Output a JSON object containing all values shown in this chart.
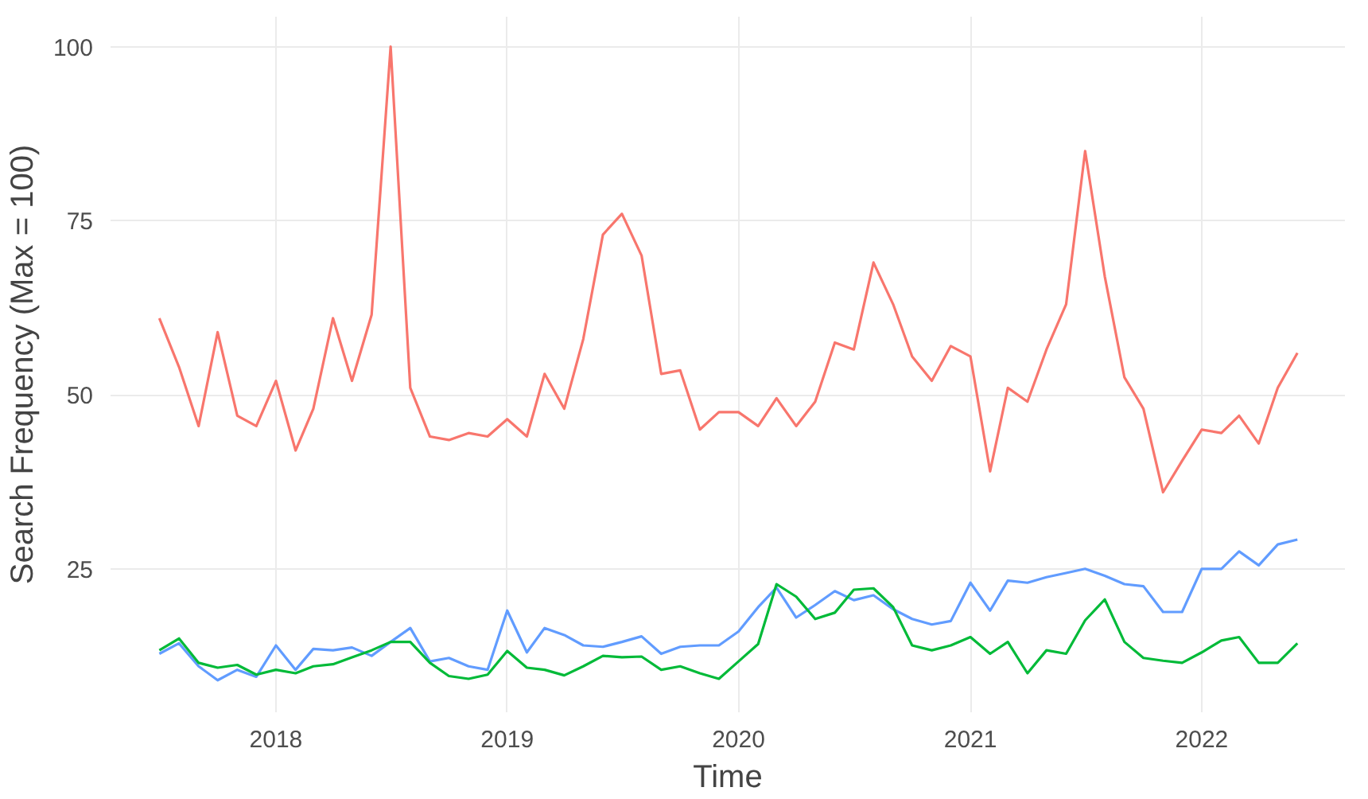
{
  "chart_data": {
    "type": "line",
    "xlabel": "Time",
    "ylabel": "Search Frequency (Max = 100)",
    "x": [
      "2017-07",
      "2017-08",
      "2017-09",
      "2017-10",
      "2017-11",
      "2017-12",
      "2018-01",
      "2018-02",
      "2018-03",
      "2018-04",
      "2018-05",
      "2018-06",
      "2018-07",
      "2018-08",
      "2018-09",
      "2018-10",
      "2018-11",
      "2018-12",
      "2019-01",
      "2019-02",
      "2019-03",
      "2019-04",
      "2019-05",
      "2019-06",
      "2019-07",
      "2019-08",
      "2019-09",
      "2019-10",
      "2019-11",
      "2019-12",
      "2020-01",
      "2020-02",
      "2020-03",
      "2020-04",
      "2020-05",
      "2020-06",
      "2020-07",
      "2020-08",
      "2020-09",
      "2020-10",
      "2020-11",
      "2020-12",
      "2021-01",
      "2021-02",
      "2021-03",
      "2021-04",
      "2021-05",
      "2021-06",
      "2021-07",
      "2021-08",
      "2021-09",
      "2021-10",
      "2021-11",
      "2021-12",
      "2022-01",
      "2022-02",
      "2022-03",
      "2022-04",
      "2022-05",
      "2022-06"
    ],
    "series": [
      {
        "color": "#f8766d",
        "values": [
          61,
          54,
          45.5,
          59,
          47,
          45.5,
          52,
          42,
          48,
          61,
          52,
          61.5,
          100,
          51,
          44,
          43.5,
          44.5,
          44,
          46.5,
          44,
          53,
          48,
          58,
          73,
          76,
          70,
          53,
          53.5,
          45,
          47.5,
          47.5,
          45.5,
          49.5,
          45.5,
          49,
          57.5,
          56.5,
          69,
          63,
          55.5,
          52,
          57,
          55.5,
          39,
          51,
          49,
          56.5,
          63,
          85,
          67,
          52.5,
          48,
          36,
          40.5,
          45,
          44.5,
          47,
          43,
          51,
          56
        ]
      },
      {
        "color": "#619cff",
        "values": [
          12.8,
          14.3,
          11,
          9,
          10.5,
          9.5,
          14,
          10.5,
          13.5,
          13.3,
          13.7,
          12.5,
          14.5,
          16.5,
          11.7,
          12.2,
          11,
          10.5,
          19,
          13,
          16.5,
          15.5,
          14,
          13.8,
          14.5,
          15.3,
          12.8,
          13.8,
          14,
          14,
          16,
          19.5,
          22.3,
          18,
          19.8,
          21.8,
          20.5,
          21.2,
          19.2,
          17.8,
          17,
          17.5,
          23,
          19,
          23.3,
          23,
          23.8,
          24.4,
          25,
          24,
          22.8,
          22.5,
          18.8,
          18.8,
          25,
          25,
          27.5,
          25.5,
          28.5,
          29.2
        ]
      },
      {
        "color": "#00ba38",
        "values": [
          13.3,
          15,
          11.5,
          10.8,
          11.2,
          9.8,
          10.5,
          10,
          11,
          11.3,
          12.3,
          13.3,
          14.5,
          14.5,
          11.5,
          9.6,
          9.2,
          9.8,
          13.2,
          10.8,
          10.5,
          9.7,
          11,
          12.5,
          12.3,
          12.4,
          10.5,
          11,
          10,
          9.2,
          11.7,
          14.2,
          22.8,
          21,
          17.8,
          18.7,
          22,
          22.2,
          19.5,
          14,
          13.3,
          14,
          15.2,
          12.8,
          14.5,
          10,
          13.3,
          12.8,
          17.6,
          20.6,
          14.5,
          12.2,
          11.8,
          11.5,
          13,
          14.7,
          15.2,
          11.5,
          11.5,
          14.3
        ]
      }
    ],
    "xlim": [
      "2017-04-15",
      "2022-08-15"
    ],
    "xticks": [
      {
        "value": "2018-01-01",
        "label": "2018"
      },
      {
        "value": "2019-01-01",
        "label": "2019"
      },
      {
        "value": "2020-01-01",
        "label": "2020"
      },
      {
        "value": "2021-01-01",
        "label": "2021"
      },
      {
        "value": "2022-01-01",
        "label": "2022"
      }
    ],
    "ylim": [
      4.4,
      104.3
    ],
    "yticks": [
      25,
      50,
      75,
      100
    ],
    "grid": true,
    "line_style": "solid"
  }
}
